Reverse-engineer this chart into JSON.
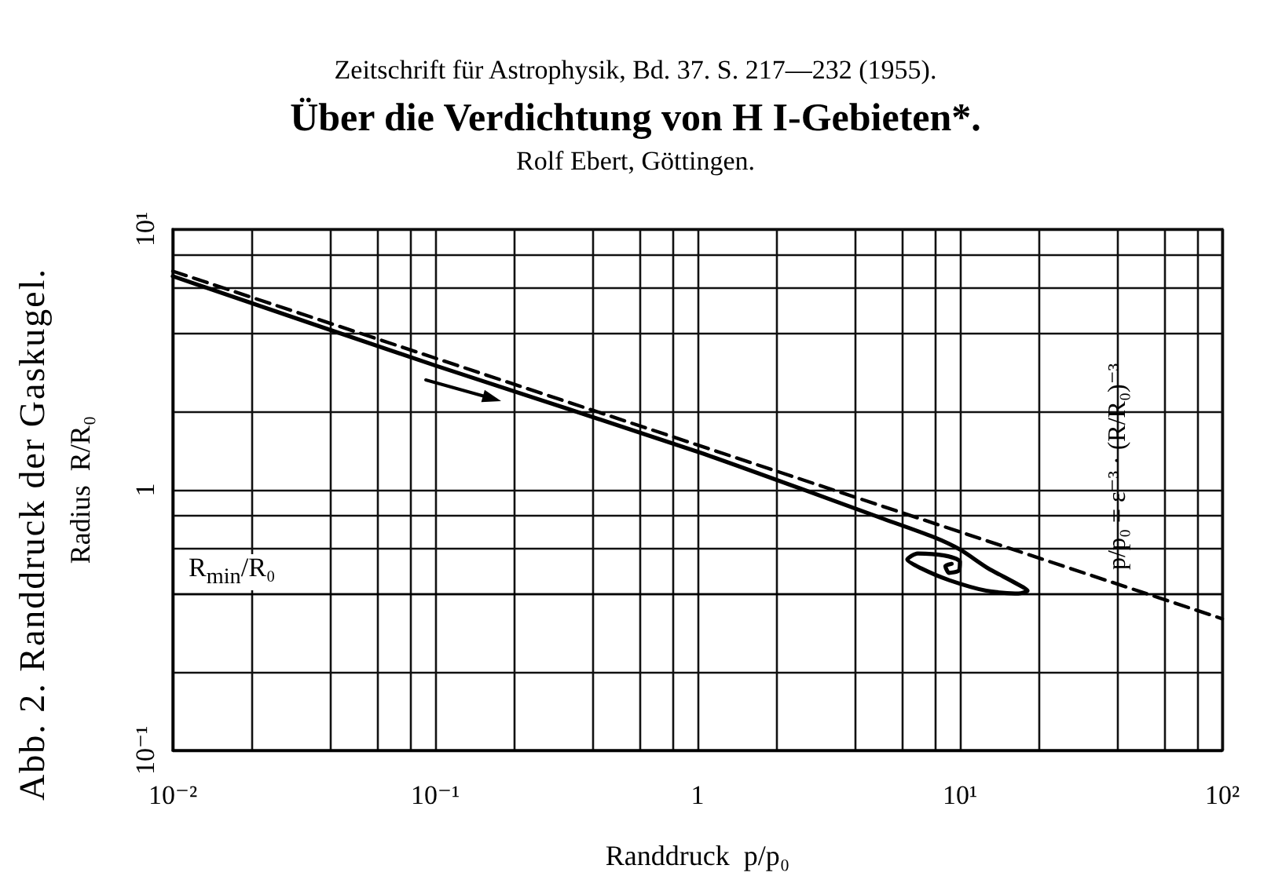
{
  "chart_data": {
    "type": "line",
    "title": "Über die Verdichtung von H I-Gebieten*.",
    "subtitle": "Rolf Ebert, Göttingen.",
    "xlabel": "Randdruck  p/p₀",
    "ylabel": "Radius  R/R₀",
    "annotations": [
      "Zeitschrift für Astrophysik, Bd. 37. S. 217—232 (1955).",
      "Abb. 2. Randdruck der Gaskugel.",
      {
        "text": "p/p₀ = ε⁻³ · (R/R₀)⁻³",
        "x": 40,
        "y": 0.44
      }
    ],
    "series": [
      {
        "color": "#000000",
        "line_style": "solid",
        "x": [
          0.01,
          0.1,
          1,
          5,
          7.9,
          10,
          12.8,
          16.2,
          18.1,
          16.7,
          12.6,
          9.1,
          7.1,
          6.3,
          6.9,
          8.7,
          10,
          9.9,
          9.1,
          8.8,
          9.3
        ],
        "values": [
          6.6,
          3.0,
          1.4,
          0.78,
          0.66,
          0.59,
          0.5,
          0.44,
          0.41,
          0.4,
          0.41,
          0.45,
          0.5,
          0.54,
          0.57,
          0.56,
          0.53,
          0.49,
          0.48,
          0.51,
          0.52
        ]
      },
      {
        "color": "#000000",
        "line_style": "dashed",
        "x": [
          0.01,
          100
        ],
        "values": [
          6.9,
          0.32
        ]
      }
    ],
    "log": "xy",
    "xlim": [
      0.01,
      100
    ],
    "ylim": [
      0.1,
      10
    ],
    "xticks": [
      {
        "value": 0.01,
        "label": "10⁻²"
      },
      {
        "value": 0.02,
        "label": null
      },
      {
        "value": 0.04,
        "label": null
      },
      {
        "value": 0.06,
        "label": null
      },
      {
        "value": 0.08,
        "label": null
      },
      {
        "value": 0.1,
        "label": "10⁻¹"
      },
      {
        "value": 0.2,
        "label": null
      },
      {
        "value": 0.4,
        "label": null
      },
      {
        "value": 0.6,
        "label": null
      },
      {
        "value": 0.8,
        "label": null
      },
      1,
      {
        "value": 2,
        "label": null
      },
      {
        "value": 4,
        "label": null
      },
      {
        "value": 6,
        "label": null
      },
      {
        "value": 8,
        "label": null
      },
      {
        "value": 10,
        "label": "10¹"
      },
      {
        "value": 20,
        "label": null
      },
      {
        "value": 40,
        "label": null
      },
      {
        "value": 60,
        "label": null
      },
      {
        "value": 80,
        "label": null
      },
      {
        "value": 100,
        "label": "10²"
      }
    ],
    "yticks": [
      {
        "value": 0.1,
        "label": "10⁻¹"
      },
      {
        "value": 0.2,
        "label": null
      },
      {
        "value": 0.4,
        "label": null
      },
      {
        "value": 0.6,
        "label": null
      },
      {
        "value": 0.8,
        "label": null
      },
      1,
      {
        "value": 2,
        "label": null
      },
      {
        "value": 4,
        "label": null
      },
      {
        "value": 6,
        "label": null
      },
      {
        "value": 8,
        "label": null
      },
      {
        "value": 10,
        "label": "10¹"
      }
    ],
    "grid": true,
    "marker": "none",
    "ref_lines": [
      {
        "axis": "y",
        "value": 0.4,
        "label": "R$_{min}$/R₀",
        "color": "#000000"
      }
    ]
  }
}
